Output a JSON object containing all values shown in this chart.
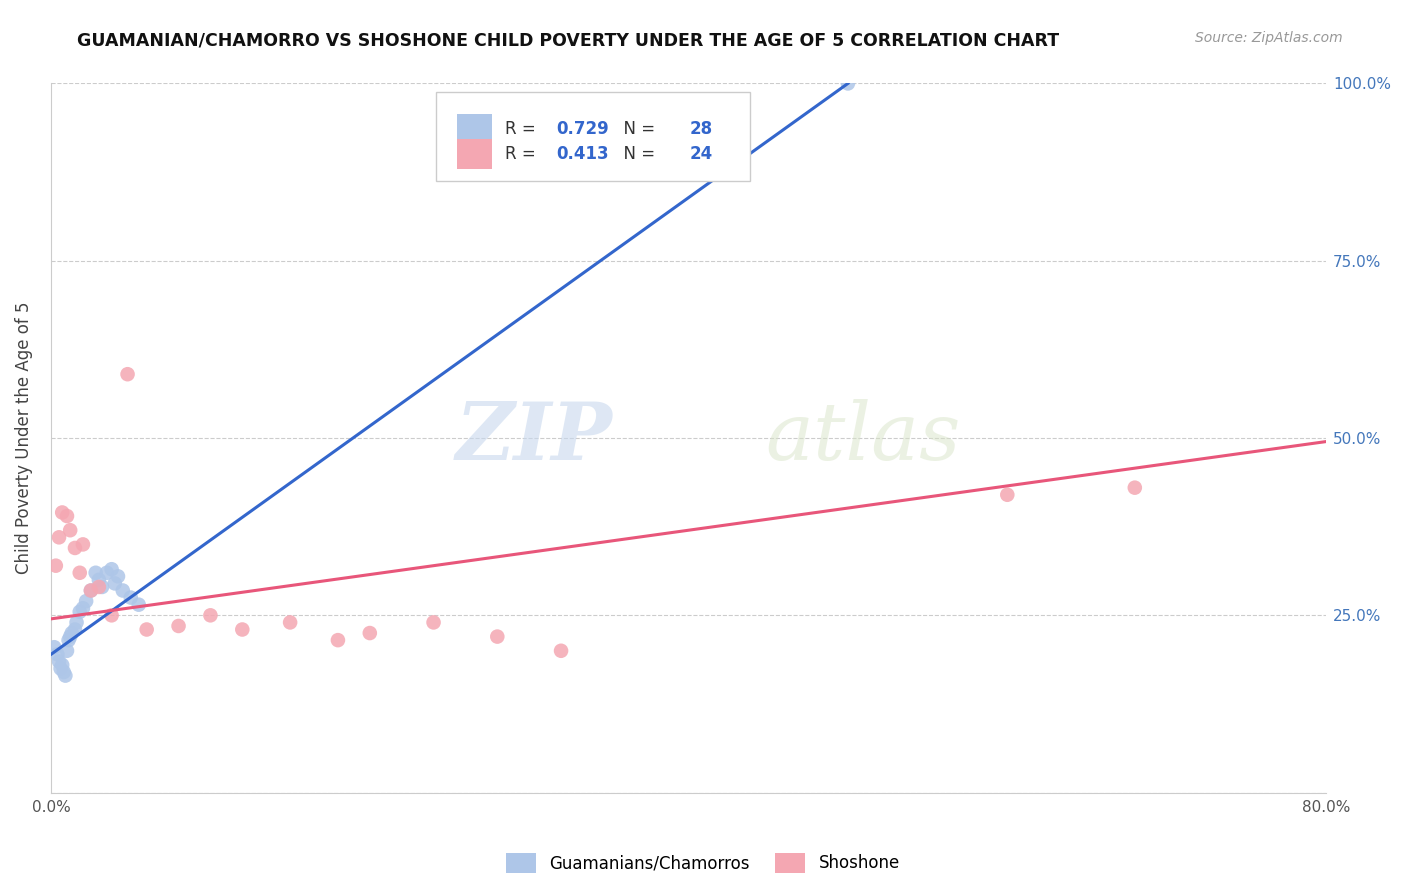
{
  "title": "GUAMANIAN/CHAMORRO VS SHOSHONE CHILD POVERTY UNDER THE AGE OF 5 CORRELATION CHART",
  "source": "Source: ZipAtlas.com",
  "ylabel": "Child Poverty Under the Age of 5",
  "r_blue": 0.729,
  "n_blue": 28,
  "r_pink": 0.413,
  "n_pink": 24,
  "xlim": [
    0.0,
    0.8
  ],
  "ylim": [
    0.0,
    1.0
  ],
  "blue_color": "#aec6e8",
  "pink_color": "#f4a7b2",
  "blue_line_color": "#3366cc",
  "pink_line_color": "#e8567a",
  "legend_labels": [
    "Guamanians/Chamorros",
    "Shoshone"
  ],
  "watermark_zip": "ZIP",
  "watermark_atlas": "atlas",
  "blue_scatter_x": [
    0.002,
    0.004,
    0.005,
    0.006,
    0.007,
    0.008,
    0.009,
    0.01,
    0.011,
    0.012,
    0.013,
    0.015,
    0.016,
    0.018,
    0.02,
    0.022,
    0.025,
    0.028,
    0.03,
    0.032,
    0.035,
    0.038,
    0.04,
    0.042,
    0.045,
    0.05,
    0.055,
    0.5
  ],
  "blue_scatter_y": [
    0.205,
    0.195,
    0.185,
    0.175,
    0.18,
    0.17,
    0.165,
    0.2,
    0.215,
    0.22,
    0.225,
    0.23,
    0.24,
    0.255,
    0.26,
    0.27,
    0.285,
    0.31,
    0.3,
    0.29,
    0.31,
    0.315,
    0.295,
    0.305,
    0.285,
    0.275,
    0.265,
    1.0
  ],
  "pink_scatter_x": [
    0.003,
    0.005,
    0.007,
    0.01,
    0.012,
    0.015,
    0.018,
    0.02,
    0.025,
    0.03,
    0.038,
    0.048,
    0.06,
    0.08,
    0.1,
    0.12,
    0.15,
    0.18,
    0.2,
    0.24,
    0.28,
    0.32,
    0.6,
    0.68
  ],
  "pink_scatter_y": [
    0.32,
    0.36,
    0.395,
    0.39,
    0.37,
    0.345,
    0.31,
    0.35,
    0.285,
    0.29,
    0.25,
    0.59,
    0.23,
    0.235,
    0.25,
    0.23,
    0.24,
    0.215,
    0.225,
    0.24,
    0.22,
    0.2,
    0.42,
    0.43
  ],
  "blue_line_x": [
    0.0,
    0.5
  ],
  "blue_line_y": [
    0.195,
    1.0
  ],
  "pink_line_x": [
    0.0,
    0.8
  ],
  "pink_line_y": [
    0.245,
    0.495
  ],
  "ytick_right_labels": [
    "",
    "25.0%",
    "50.0%",
    "75.0%",
    "100.0%"
  ],
  "ytick_right_color": "#4477bb"
}
